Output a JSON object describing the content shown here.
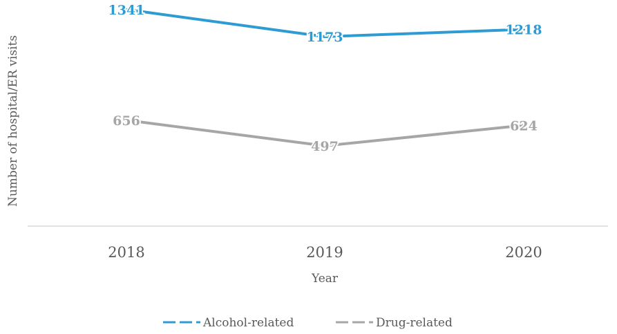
{
  "chart_data": {
    "type": "line",
    "categories": [
      "2018",
      "2019",
      "2020"
    ],
    "series": [
      {
        "name": "Alcohol-related",
        "values": [
          1341,
          1173,
          1218
        ],
        "labels": [
          "1341",
          "1173",
          "1218"
        ],
        "color": "#2e9bd3"
      },
      {
        "name": "Drug-related",
        "values": [
          656,
          497,
          624
        ],
        "labels": [
          "656",
          "497",
          "624"
        ],
        "color": "#a6a6a6"
      }
    ],
    "xlabel": "Year",
    "ylabel": "Number of hospital/ER visits",
    "ylim": [
      0,
      1400
    ],
    "grid": false,
    "legend": "bottom"
  }
}
